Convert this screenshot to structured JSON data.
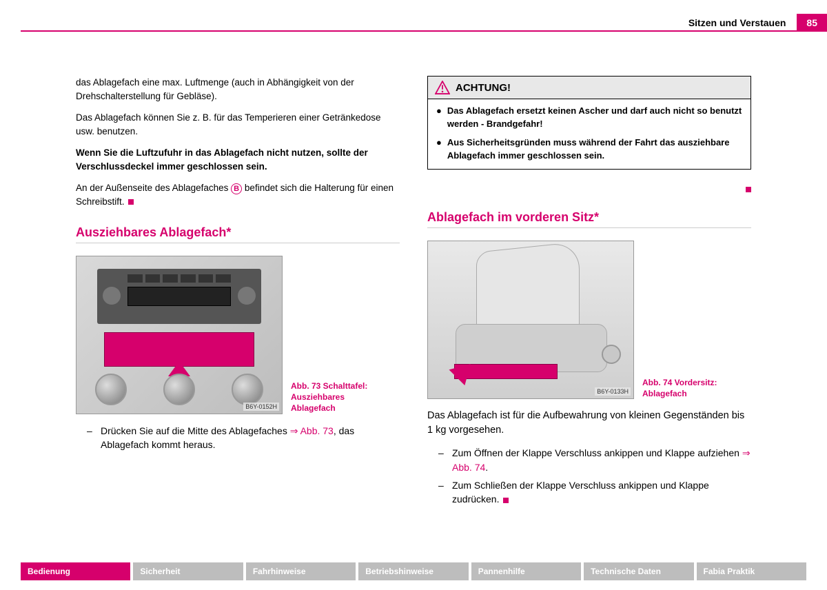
{
  "colors": {
    "accent": "#d6006c",
    "tab_inactive": "#bdbdbd",
    "grey_bg": "#e8e8e8"
  },
  "header": {
    "section_title": "Sitzen und Verstauen",
    "page_number": "85"
  },
  "left": {
    "para1": "das Ablagefach eine max. Luftmenge (auch in Abhängigkeit von der Drehschalterstellung für Gebläse).",
    "para2": "Das Ablagefach können Sie z. B. für das Temperieren einer Getränkedose usw. benutzen.",
    "para3_bold": "Wenn Sie die Luftzufuhr in das Ablagefach nicht nutzen, sollte der Verschlussdeckel immer geschlossen sein.",
    "para4_a": "An der Außenseite des Ablagefaches ",
    "para4_b_letter": "B",
    "para4_c": " befindet sich die Halterung für einen Schreibstift.",
    "section_title": "Ausziehbares Ablagefach*",
    "fig73_id": "B6Y-0152H",
    "fig73_caption": "Abb. 73   Schalttafel: Ausziehbares Ablagefach",
    "instr_a": "Drücken Sie auf die Mitte des Ablagefaches ",
    "instr_link": "⇒ Abb. 73",
    "instr_b": ", das Ablagefach kommt heraus."
  },
  "right": {
    "warning_title": "ACHTUNG!",
    "warn_item1": "Das Ablagefach ersetzt keinen Ascher und darf auch nicht so benutzt werden - Brandgefahr!",
    "warn_item2": "Aus Sicherheitsgründen muss während der Fahrt das ausziehbare Ablagefach immer geschlossen sein.",
    "section_title": "Ablagefach im vorderen Sitz*",
    "fig74_id": "B6Y-0133H",
    "fig74_caption": "Abb. 74   Vordersitz: Ablagefach",
    "para1": "Das Ablagefach ist für die Aufbewahrung von kleinen Gegenständen bis 1 kg vorgesehen.",
    "instr1_a": "Zum Öffnen der Klappe Verschluss ankippen und Klappe aufziehen ",
    "instr1_link": "⇒ Abb. 74",
    "instr1_b": ".",
    "instr2": "Zum Schließen der Klappe Verschluss ankippen und Klappe zudrücken."
  },
  "footer_tabs": [
    {
      "label": "Bedienung",
      "active": true
    },
    {
      "label": "Sicherheit",
      "active": false
    },
    {
      "label": "Fahrhinweise",
      "active": false
    },
    {
      "label": "Betriebshinweise",
      "active": false
    },
    {
      "label": "Pannenhilfe",
      "active": false
    },
    {
      "label": "Technische Daten",
      "active": false
    },
    {
      "label": "Fabia Praktik",
      "active": false
    }
  ]
}
